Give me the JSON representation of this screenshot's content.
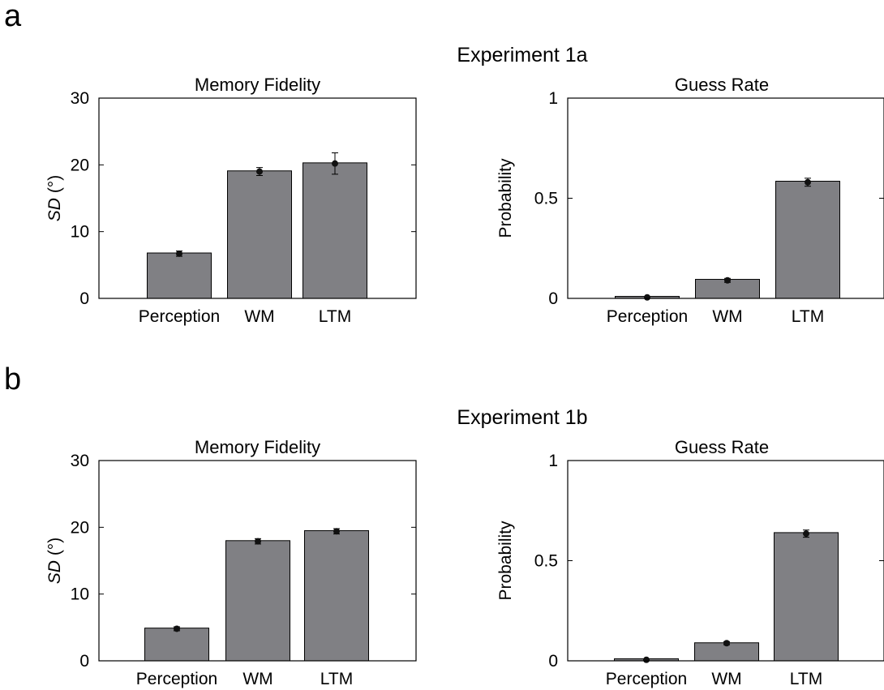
{
  "panels": [
    {
      "letter": "a",
      "experiment": "Experiment 1a",
      "charts": [
        {
          "type": "bar",
          "title": "Memory Fidelity",
          "ylabel_italic": "SD",
          "ylabel_rest": " (°)",
          "ylim": [
            0,
            30
          ],
          "yticks": [
            0,
            10,
            20,
            30
          ],
          "categories": [
            "Perception",
            "WM",
            "LTM"
          ],
          "values": [
            6.8,
            19.1,
            20.3
          ],
          "points": [
            6.7,
            19.0,
            20.2
          ],
          "errors": [
            0.4,
            0.6,
            1.6
          ],
          "bar_color": "#808084"
        },
        {
          "type": "bar",
          "title": "Guess Rate",
          "ylabel": "Probability",
          "ylim": [
            0,
            1
          ],
          "yticks": [
            0,
            0.5,
            1
          ],
          "categories": [
            "Perception",
            "WM",
            "LTM"
          ],
          "values": [
            0.01,
            0.095,
            0.585
          ],
          "points": [
            0.005,
            0.09,
            0.58
          ],
          "errors": [
            0.005,
            0.01,
            0.02
          ],
          "bar_color": "#808084"
        }
      ]
    },
    {
      "letter": "b",
      "experiment": "Experiment 1b",
      "charts": [
        {
          "type": "bar",
          "title": "Memory Fidelity",
          "ylabel_italic": "SD",
          "ylabel_rest": " (°)",
          "ylim": [
            0,
            30
          ],
          "yticks": [
            0,
            10,
            20,
            30
          ],
          "categories": [
            "Perception",
            "WM",
            "LTM"
          ],
          "values": [
            4.9,
            18.0,
            19.5
          ],
          "points": [
            4.8,
            17.9,
            19.4
          ],
          "errors": [
            0.3,
            0.4,
            0.4
          ],
          "bar_color": "#808084"
        },
        {
          "type": "bar",
          "title": "Guess Rate",
          "ylabel": "Probability",
          "ylim": [
            0,
            1
          ],
          "yticks": [
            0,
            0.5,
            1
          ],
          "categories": [
            "Perception",
            "WM",
            "LTM"
          ],
          "values": [
            0.01,
            0.09,
            0.64
          ],
          "points": [
            0.005,
            0.088,
            0.635
          ],
          "errors": [
            0.004,
            0.008,
            0.018
          ],
          "bar_color": "#808084"
        }
      ]
    }
  ]
}
